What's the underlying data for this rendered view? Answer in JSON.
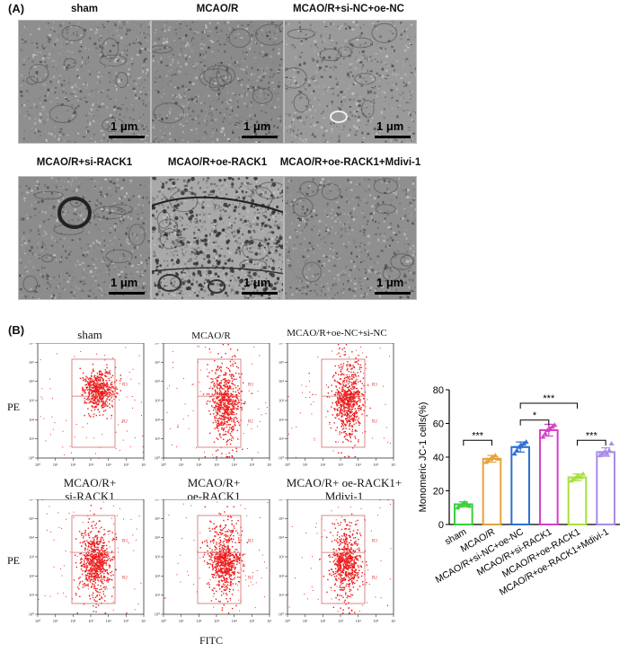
{
  "panelA": {
    "label": "(A)",
    "scale_text": "1 μm",
    "images": [
      {
        "title": "sham"
      },
      {
        "title": "MCAO/R"
      },
      {
        "title": "MCAO/R+si-NC+oe-NC"
      },
      {
        "title": "MCAO/R+si-RACK1"
      },
      {
        "title": "MCAO/R+oe-RACK1"
      },
      {
        "title": "MCAO/R+oe-RACK1+Mdivi-1"
      }
    ]
  },
  "panelB": {
    "label": "(B)",
    "y_axis_label": "PE",
    "x_axis_label": "FITC",
    "gate_upper": "R3",
    "gate_lower": "R2",
    "plots": [
      {
        "title": "sham"
      },
      {
        "title": "MCAO/R"
      },
      {
        "title": "MCAO/R+oe-NC+si-NC"
      },
      {
        "title_line1": "MCAO/R+",
        "title_line2": "si-RACK1"
      },
      {
        "title_line1": "MCAO/R+",
        "title_line2": "oe-RACK1"
      },
      {
        "title_line1": "MCAO/R+ oe-RACK1+",
        "title_line2": "Mdivi-1"
      }
    ]
  },
  "chart_data": {
    "type": "bar",
    "ylabel": "Monomeric JC-1 cells(%)",
    "ylim": [
      0,
      80
    ],
    "yticks": [
      0,
      20,
      40,
      60,
      80
    ],
    "categories": [
      "sham",
      "MCAO/R",
      "MCAO/R+si-NC+oe-NC",
      "MCAO/R+si-RACK1",
      "MCAO/R+oe-RACK1",
      "MCAO/R+oe-RACK1+Mdivi-1"
    ],
    "values": [
      12,
      39,
      46,
      56,
      28,
      43
    ],
    "errors": [
      1.5,
      2,
      3,
      3.5,
      2,
      2.5
    ],
    "colors": [
      "#3ccf3c",
      "#e6a23c",
      "#2f6fd0",
      "#d63fc8",
      "#a8e03c",
      "#a98be8"
    ],
    "points": [
      [
        10,
        11,
        12,
        13,
        12,
        11
      ],
      [
        37,
        38,
        39,
        40,
        41,
        39
      ],
      [
        42,
        44,
        46,
        47,
        48,
        49
      ],
      [
        52,
        54,
        56,
        57,
        58,
        59
      ],
      [
        26,
        27,
        28,
        29,
        28,
        30
      ],
      [
        41,
        42,
        43,
        42,
        44,
        48
      ]
    ],
    "significance": [
      {
        "from": 0,
        "to": 1,
        "label": "***"
      },
      {
        "from": 2,
        "to": 3,
        "label": "*"
      },
      {
        "from": 2,
        "to": 4,
        "label": "***"
      },
      {
        "from": 4,
        "to": 5,
        "label": "***"
      }
    ]
  }
}
